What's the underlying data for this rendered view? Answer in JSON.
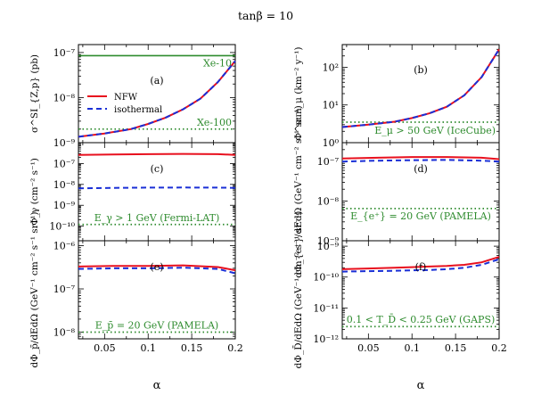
{
  "title": "tanβ = 10",
  "xlabel": "α",
  "legend": {
    "nfw": "NFW",
    "iso": "isothermal"
  },
  "colors": {
    "nfw": "#e8101e",
    "iso": "#1a2fd6",
    "limit": "#2e8b2e"
  },
  "chart_data": [
    {
      "type": "line",
      "panel": "(a)",
      "ylabel": "σ^SI_{Z,p} (pb)",
      "log": true,
      "xlim": [
        0.02,
        0.2
      ],
      "ylim": [
        1e-09,
        1.5e-07
      ],
      "xticks": [
        "0.05",
        "0.1",
        "0.15",
        "0.2"
      ],
      "yticks": [
        "10⁻⁹",
        "10⁻⁸",
        "10⁻⁷"
      ],
      "series": [
        {
          "name": "NFW",
          "x": [
            0.02,
            0.05,
            0.08,
            0.1,
            0.12,
            0.14,
            0.16,
            0.18,
            0.2
          ],
          "y": [
            1.35e-09,
            1.6e-09,
            2e-09,
            2.6e-09,
            3.6e-09,
            5.5e-09,
            9.5e-09,
            2.2e-08,
            6.5e-08
          ]
        },
        {
          "name": "isothermal",
          "x": [
            0.02,
            0.05,
            0.08,
            0.1,
            0.12,
            0.14,
            0.16,
            0.18,
            0.2
          ],
          "y": [
            1.35e-09,
            1.6e-09,
            2e-09,
            2.6e-09,
            3.6e-09,
            5.5e-09,
            9.5e-09,
            2.2e-08,
            6.5e-08
          ]
        }
      ],
      "limits": [
        {
          "label": "Xe-10",
          "y": 8.5e-08,
          "style": "solid"
        },
        {
          "label": "Xe-100",
          "y": 2e-09,
          "style": "dotted"
        }
      ]
    },
    {
      "type": "line",
      "panel": "(b)",
      "ylabel": "Φ^sun_μ (km⁻² y⁻¹)",
      "log": true,
      "xlim": [
        0.02,
        0.2
      ],
      "ylim": [
        1,
        400
      ],
      "xticks": [
        "0.05",
        "0.1",
        "0.15",
        "0.2"
      ],
      "yticks": [
        "10⁰",
        "10¹",
        "10²"
      ],
      "series": [
        {
          "name": "NFW",
          "x": [
            0.02,
            0.05,
            0.08,
            0.1,
            0.12,
            0.14,
            0.16,
            0.18,
            0.2
          ],
          "y": [
            2.6,
            3.0,
            3.6,
            4.5,
            6.0,
            9.0,
            18,
            55,
            300
          ]
        },
        {
          "name": "isothermal",
          "x": [
            0.02,
            0.05,
            0.08,
            0.1,
            0.12,
            0.14,
            0.16,
            0.18,
            0.2
          ],
          "y": [
            2.6,
            3.0,
            3.6,
            4.5,
            6.0,
            9.0,
            18,
            55,
            300
          ]
        }
      ],
      "limits": [
        {
          "label": "E_μ > 50 GeV (IceCube)",
          "y": 3.5,
          "style": "dotted"
        }
      ]
    },
    {
      "type": "line",
      "panel": "(c)",
      "ylabel": "Φ_γ (cm⁻² s⁻¹)",
      "log": true,
      "xlim": [
        0.02,
        0.2
      ],
      "ylim": [
        2e-11,
        1e-06
      ],
      "xticks": [
        "0.05",
        "0.1",
        "0.15",
        "0.2"
      ],
      "yticks": [
        "10⁻¹⁰",
        "10⁻⁹",
        "10⁻⁸",
        "10⁻⁷"
      ],
      "series": [
        {
          "name": "NFW",
          "x": [
            0.02,
            0.06,
            0.1,
            0.14,
            0.18,
            0.2
          ],
          "y": [
            2.6e-07,
            2.7e-07,
            2.8e-07,
            2.9e-07,
            2.8e-07,
            2.6e-07
          ]
        },
        {
          "name": "isothermal",
          "x": [
            0.02,
            0.06,
            0.1,
            0.14,
            0.18,
            0.2
          ],
          "y": [
            6.5e-09,
            6.8e-09,
            7e-09,
            7.1e-09,
            7e-09,
            6.8e-09
          ]
        }
      ],
      "limits": [
        {
          "label": "E_γ > 1 GeV (Fermi-LAT)",
          "y": 1.2e-10,
          "style": "dotted"
        }
      ]
    },
    {
      "type": "line",
      "panel": "(d)",
      "ylabel": "dΦ_{e⁺}/dEdΩ (GeV⁻¹ cm⁻² s⁻¹ sr⁻¹)",
      "log": true,
      "xlim": [
        0.02,
        0.2
      ],
      "ylim": [
        1e-09,
        3e-07
      ],
      "xticks": [
        "0.05",
        "0.1",
        "0.15",
        "0.2"
      ],
      "yticks": [
        "10⁻⁹",
        "10⁻⁸",
        "10⁻⁷"
      ],
      "series": [
        {
          "name": "NFW",
          "x": [
            0.02,
            0.06,
            0.1,
            0.14,
            0.18,
            0.2
          ],
          "y": [
            1.2e-07,
            1.25e-07,
            1.3e-07,
            1.3e-07,
            1.25e-07,
            1.15e-07
          ]
        },
        {
          "name": "isothermal",
          "x": [
            0.02,
            0.06,
            0.1,
            0.14,
            0.18,
            0.2
          ],
          "y": [
            1e-07,
            1.05e-07,
            1.08e-07,
            1.1e-07,
            1.05e-07,
            1e-07
          ]
        }
      ],
      "limits": [
        {
          "label": "E_{e⁺} = 20 GeV (PAMELA)",
          "y": 6.5e-09,
          "style": "dotted"
        }
      ]
    },
    {
      "type": "line",
      "panel": "(e)",
      "ylabel": "dΦ_p̄/dEdΩ (GeV⁻¹ cm⁻² s⁻¹ sr⁻¹)",
      "log": true,
      "xlim": [
        0.02,
        0.2
      ],
      "ylim": [
        7e-09,
        1.3e-06
      ],
      "xticks": [
        "0.05",
        "0.1",
        "0.15",
        "0.2"
      ],
      "yticks": [
        "10⁻⁸",
        "10⁻⁷",
        "10⁻⁶"
      ],
      "series": [
        {
          "name": "NFW",
          "x": [
            0.02,
            0.06,
            0.1,
            0.14,
            0.18,
            0.2
          ],
          "y": [
            3.3e-07,
            3.4e-07,
            3.4e-07,
            3.5e-07,
            3.2e-07,
            2.7e-07
          ]
        },
        {
          "name": "isothermal",
          "x": [
            0.02,
            0.06,
            0.1,
            0.14,
            0.18,
            0.2
          ],
          "y": [
            2.9e-07,
            3e-07,
            3e-07,
            3.1e-07,
            2.9e-07,
            2.3e-07
          ]
        }
      ],
      "limits": [
        {
          "label": "E_p̄ = 20 GeV (PAMELA)",
          "y": 1e-08,
          "style": "dotted"
        }
      ]
    },
    {
      "type": "line",
      "panel": "(f)",
      "ylabel": "dΦ_D̄/dEdΩ (GeV⁻¹ cm⁻² s⁻¹ sr⁻¹)",
      "log": true,
      "xlim": [
        0.02,
        0.2
      ],
      "ylim": [
        1e-12,
        1.5e-09
      ],
      "xticks": [
        "0.05",
        "0.1",
        "0.15",
        "0.2"
      ],
      "yticks": [
        "10⁻¹²",
        "10⁻¹¹",
        "10⁻¹⁰",
        "10⁻⁹"
      ],
      "series": [
        {
          "name": "NFW",
          "x": [
            0.02,
            0.05,
            0.08,
            0.1,
            0.12,
            0.14,
            0.16,
            0.18,
            0.2
          ],
          "y": [
            1.8e-10,
            1.9e-10,
            2e-10,
            2.1e-10,
            2.2e-10,
            2.3e-10,
            2.5e-10,
            3e-10,
            4.5e-10
          ]
        },
        {
          "name": "isothermal",
          "x": [
            0.02,
            0.05,
            0.08,
            0.1,
            0.12,
            0.14,
            0.16,
            0.18,
            0.2
          ],
          "y": [
            1.5e-10,
            1.55e-10,
            1.6e-10,
            1.65e-10,
            1.7e-10,
            1.8e-10,
            2e-10,
            2.5e-10,
            3.8e-10
          ]
        }
      ],
      "limits": [
        {
          "label": "0.1 < T_D̄ < 0.25 GeV (GAPS)",
          "y": 2.5e-12,
          "style": "dotted"
        }
      ]
    }
  ]
}
